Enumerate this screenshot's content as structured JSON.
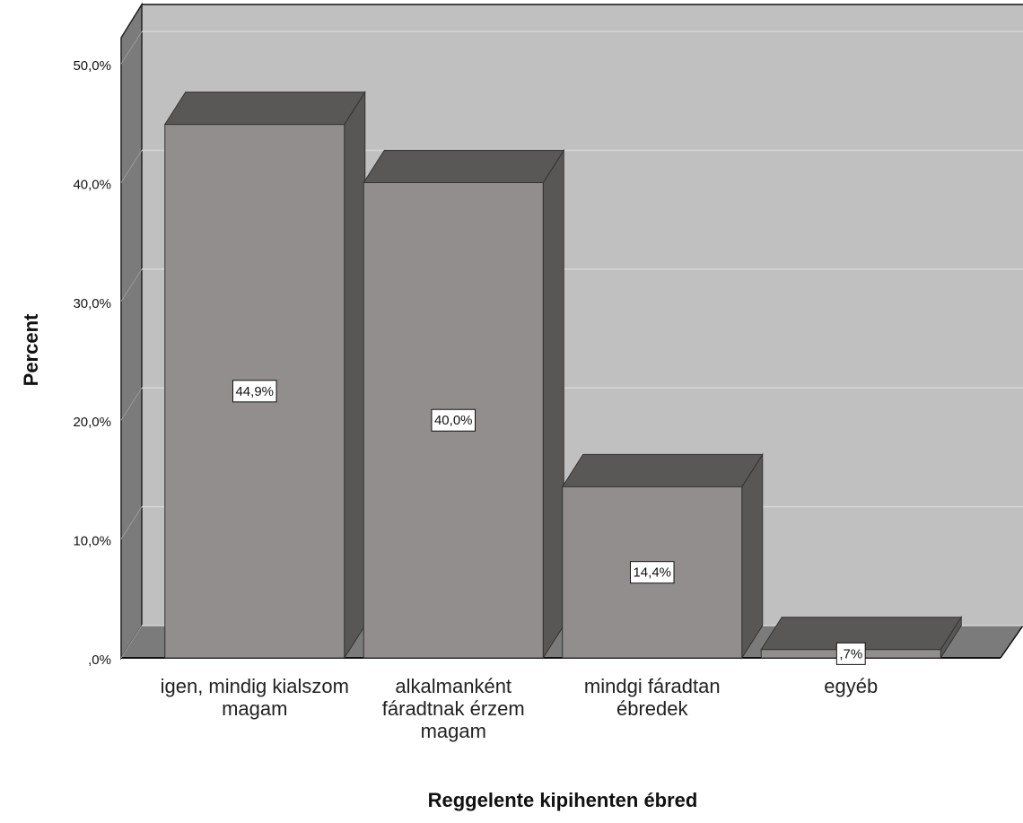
{
  "chart_data": {
    "type": "bar3d",
    "x_label": "Reggelente kipihenten ébred",
    "y_label": "Percent",
    "categories": [
      "igen, mindig kialszom magam",
      "alkalmanként fáradtnak érzem magam",
      "mindgi fáradtan ébredek",
      "egyéb"
    ],
    "values": [
      44.9,
      40.0,
      14.4,
      0.7
    ],
    "value_labels": [
      "44,9%",
      "40,0%",
      "14,4%",
      ",7%"
    ],
    "color": "#918e8d",
    "ylim": [
      0,
      52.2
    ],
    "yticks": [
      {
        "value": 0,
        "label": ",0%"
      },
      {
        "value": 10,
        "label": "10,0%"
      },
      {
        "value": 20,
        "label": "20,0%"
      },
      {
        "value": 30,
        "label": "30,0%"
      },
      {
        "value": 40,
        "label": "40,0%"
      },
      {
        "value": 50,
        "label": "50,0%"
      }
    ],
    "grid": true
  }
}
